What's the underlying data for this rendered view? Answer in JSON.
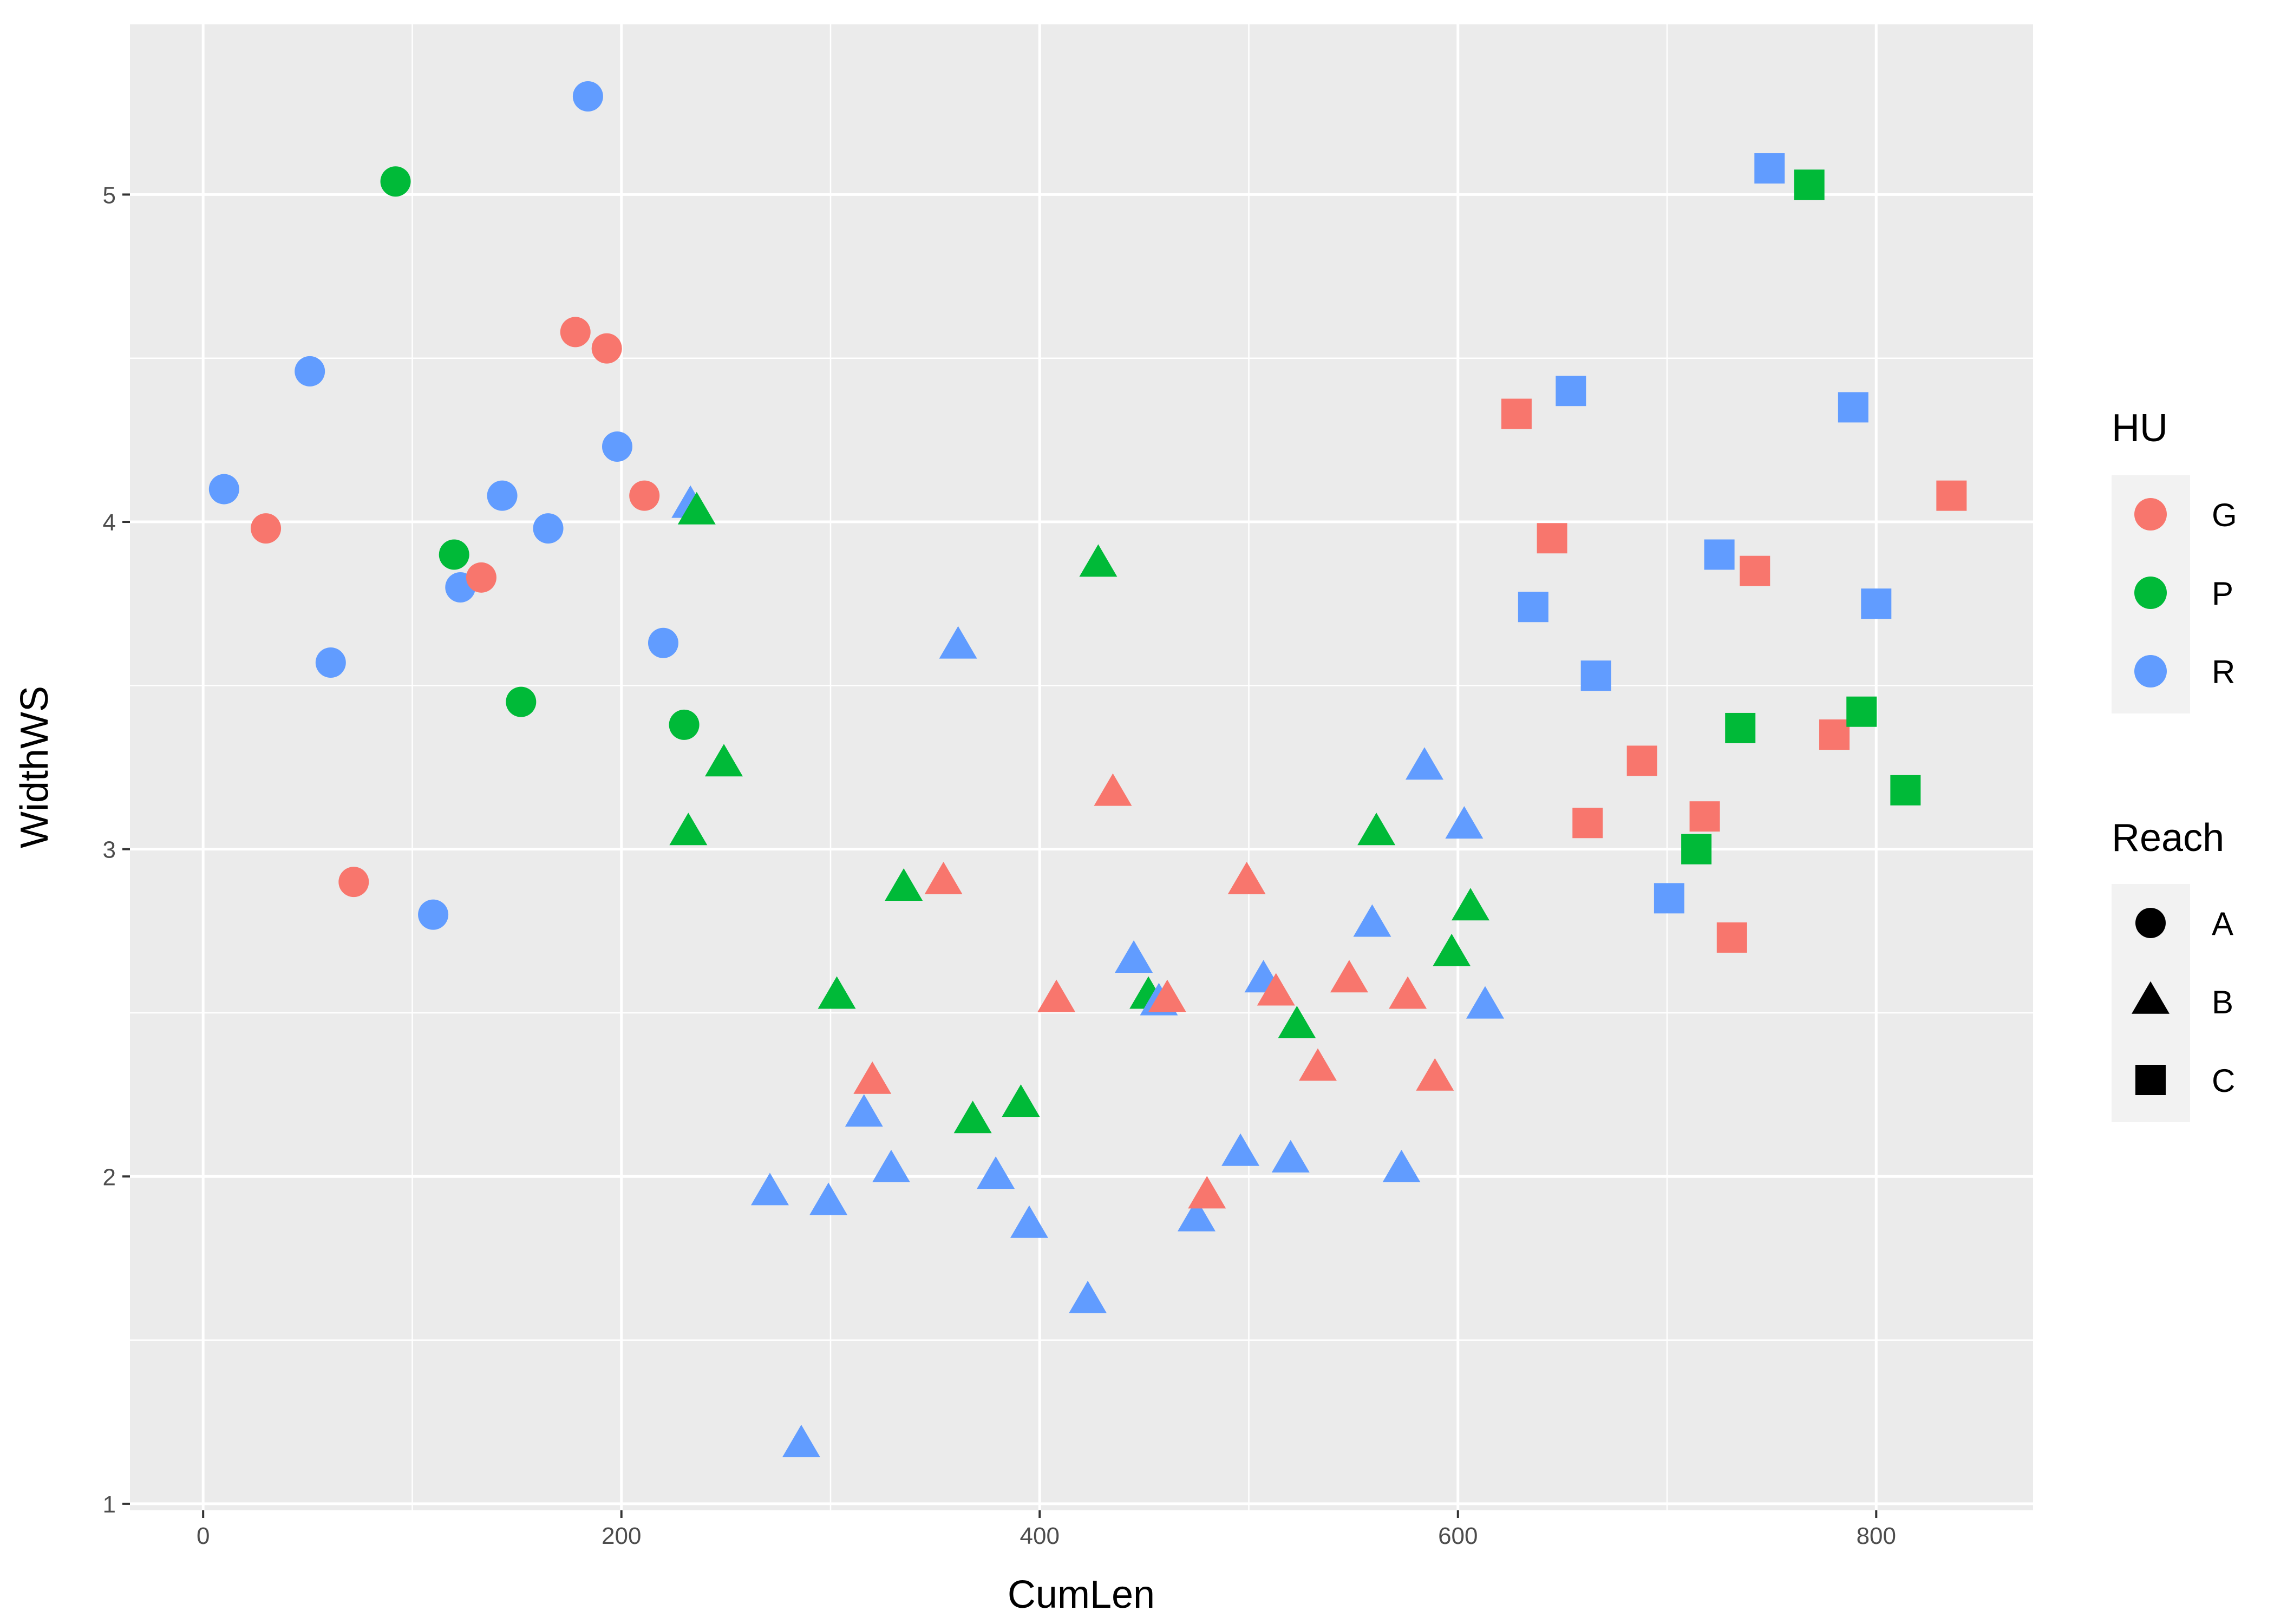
{
  "chart_data": {
    "type": "scatter",
    "title": "",
    "xlabel": "CumLen",
    "ylabel": "WidthWS",
    "xlim": [
      -35,
      875
    ],
    "ylim": [
      0.98,
      5.52
    ],
    "x_ticks": [
      0,
      200,
      400,
      600,
      800
    ],
    "y_ticks": [
      1,
      2,
      3,
      4,
      5
    ],
    "grid": true,
    "legend_position": "right",
    "color_legend": {
      "title": "HU",
      "entries": [
        {
          "label": "G",
          "color": "#F8766D"
        },
        {
          "label": "P",
          "color": "#00BA38"
        },
        {
          "label": "R",
          "color": "#619CFF"
        }
      ]
    },
    "shape_legend": {
      "title": "Reach",
      "entries": [
        {
          "label": "A",
          "shape": "circle"
        },
        {
          "label": "B",
          "shape": "triangle"
        },
        {
          "label": "C",
          "shape": "square"
        }
      ]
    },
    "points": [
      {
        "x": 10,
        "y": 4.1,
        "hu": "R",
        "reach": "A"
      },
      {
        "x": 30,
        "y": 3.98,
        "hu": "G",
        "reach": "A"
      },
      {
        "x": 51,
        "y": 4.46,
        "hu": "R",
        "reach": "A"
      },
      {
        "x": 61,
        "y": 3.57,
        "hu": "R",
        "reach": "A"
      },
      {
        "x": 72,
        "y": 2.9,
        "hu": "G",
        "reach": "A"
      },
      {
        "x": 92,
        "y": 5.04,
        "hu": "P",
        "reach": "A"
      },
      {
        "x": 110,
        "y": 2.8,
        "hu": "R",
        "reach": "A"
      },
      {
        "x": 120,
        "y": 3.9,
        "hu": "P",
        "reach": "A"
      },
      {
        "x": 123,
        "y": 3.8,
        "hu": "R",
        "reach": "A"
      },
      {
        "x": 133,
        "y": 3.83,
        "hu": "G",
        "reach": "A"
      },
      {
        "x": 143,
        "y": 4.08,
        "hu": "R",
        "reach": "A"
      },
      {
        "x": 152,
        "y": 3.45,
        "hu": "P",
        "reach": "A"
      },
      {
        "x": 165,
        "y": 3.98,
        "hu": "R",
        "reach": "A"
      },
      {
        "x": 178,
        "y": 4.58,
        "hu": "G",
        "reach": "A"
      },
      {
        "x": 184,
        "y": 5.3,
        "hu": "R",
        "reach": "A"
      },
      {
        "x": 193,
        "y": 4.53,
        "hu": "G",
        "reach": "A"
      },
      {
        "x": 198,
        "y": 4.23,
        "hu": "R",
        "reach": "A"
      },
      {
        "x": 211,
        "y": 4.08,
        "hu": "G",
        "reach": "A"
      },
      {
        "x": 220,
        "y": 3.63,
        "hu": "R",
        "reach": "A"
      },
      {
        "x": 230,
        "y": 3.38,
        "hu": "P",
        "reach": "A"
      },
      {
        "x": 233,
        "y": 4.05,
        "hu": "R",
        "reach": "B"
      },
      {
        "x": 236,
        "y": 4.03,
        "hu": "P",
        "reach": "B"
      },
      {
        "x": 232,
        "y": 3.05,
        "hu": "P",
        "reach": "B"
      },
      {
        "x": 249,
        "y": 3.26,
        "hu": "P",
        "reach": "B"
      },
      {
        "x": 271,
        "y": 1.95,
        "hu": "R",
        "reach": "B"
      },
      {
        "x": 286,
        "y": 1.18,
        "hu": "R",
        "reach": "B"
      },
      {
        "x": 299,
        "y": 1.92,
        "hu": "R",
        "reach": "B"
      },
      {
        "x": 303,
        "y": 2.55,
        "hu": "P",
        "reach": "B"
      },
      {
        "x": 316,
        "y": 2.19,
        "hu": "R",
        "reach": "B"
      },
      {
        "x": 320,
        "y": 2.29,
        "hu": "G",
        "reach": "B"
      },
      {
        "x": 329,
        "y": 2.02,
        "hu": "R",
        "reach": "B"
      },
      {
        "x": 335,
        "y": 2.88,
        "hu": "P",
        "reach": "B"
      },
      {
        "x": 354,
        "y": 2.9,
        "hu": "G",
        "reach": "B"
      },
      {
        "x": 361,
        "y": 3.62,
        "hu": "R",
        "reach": "B"
      },
      {
        "x": 368,
        "y": 2.17,
        "hu": "P",
        "reach": "B"
      },
      {
        "x": 379,
        "y": 2.0,
        "hu": "R",
        "reach": "B"
      },
      {
        "x": 391,
        "y": 2.22,
        "hu": "P",
        "reach": "B"
      },
      {
        "x": 395,
        "y": 1.85,
        "hu": "R",
        "reach": "B"
      },
      {
        "x": 408,
        "y": 2.54,
        "hu": "G",
        "reach": "B"
      },
      {
        "x": 423,
        "y": 1.62,
        "hu": "R",
        "reach": "B"
      },
      {
        "x": 428,
        "y": 3.87,
        "hu": "P",
        "reach": "B"
      },
      {
        "x": 435,
        "y": 3.17,
        "hu": "G",
        "reach": "B"
      },
      {
        "x": 445,
        "y": 2.66,
        "hu": "R",
        "reach": "B"
      },
      {
        "x": 452,
        "y": 2.55,
        "hu": "P",
        "reach": "B"
      },
      {
        "x": 457,
        "y": 2.53,
        "hu": "R",
        "reach": "B"
      },
      {
        "x": 461,
        "y": 2.54,
        "hu": "G",
        "reach": "B"
      },
      {
        "x": 475,
        "y": 1.87,
        "hu": "R",
        "reach": "B"
      },
      {
        "x": 480,
        "y": 1.94,
        "hu": "G",
        "reach": "B"
      },
      {
        "x": 496,
        "y": 2.07,
        "hu": "R",
        "reach": "B"
      },
      {
        "x": 499,
        "y": 2.9,
        "hu": "G",
        "reach": "B"
      },
      {
        "x": 507,
        "y": 2.6,
        "hu": "R",
        "reach": "B"
      },
      {
        "x": 513,
        "y": 2.56,
        "hu": "G",
        "reach": "B"
      },
      {
        "x": 520,
        "y": 2.05,
        "hu": "R",
        "reach": "B"
      },
      {
        "x": 523,
        "y": 2.46,
        "hu": "P",
        "reach": "B"
      },
      {
        "x": 533,
        "y": 2.33,
        "hu": "G",
        "reach": "B"
      },
      {
        "x": 548,
        "y": 2.6,
        "hu": "G",
        "reach": "B"
      },
      {
        "x": 559,
        "y": 2.77,
        "hu": "R",
        "reach": "B"
      },
      {
        "x": 561,
        "y": 3.05,
        "hu": "P",
        "reach": "B"
      },
      {
        "x": 573,
        "y": 2.02,
        "hu": "R",
        "reach": "B"
      },
      {
        "x": 576,
        "y": 2.55,
        "hu": "G",
        "reach": "B"
      },
      {
        "x": 584,
        "y": 3.25,
        "hu": "R",
        "reach": "B"
      },
      {
        "x": 589,
        "y": 2.3,
        "hu": "G",
        "reach": "B"
      },
      {
        "x": 597,
        "y": 2.68,
        "hu": "P",
        "reach": "B"
      },
      {
        "x": 603,
        "y": 3.07,
        "hu": "R",
        "reach": "B"
      },
      {
        "x": 606,
        "y": 2.82,
        "hu": "P",
        "reach": "B"
      },
      {
        "x": 613,
        "y": 2.52,
        "hu": "R",
        "reach": "B"
      },
      {
        "x": 628,
        "y": 4.33,
        "hu": "G",
        "reach": "C"
      },
      {
        "x": 636,
        "y": 3.74,
        "hu": "R",
        "reach": "C"
      },
      {
        "x": 645,
        "y": 3.95,
        "hu": "G",
        "reach": "C"
      },
      {
        "x": 654,
        "y": 4.4,
        "hu": "R",
        "reach": "C"
      },
      {
        "x": 662,
        "y": 3.08,
        "hu": "G",
        "reach": "C"
      },
      {
        "x": 666,
        "y": 3.53,
        "hu": "R",
        "reach": "C"
      },
      {
        "x": 688,
        "y": 3.27,
        "hu": "G",
        "reach": "C"
      },
      {
        "x": 701,
        "y": 2.85,
        "hu": "R",
        "reach": "C"
      },
      {
        "x": 714,
        "y": 3.0,
        "hu": "P",
        "reach": "C"
      },
      {
        "x": 718,
        "y": 3.1,
        "hu": "G",
        "reach": "C"
      },
      {
        "x": 725,
        "y": 3.9,
        "hu": "R",
        "reach": "C"
      },
      {
        "x": 731,
        "y": 2.73,
        "hu": "G",
        "reach": "C"
      },
      {
        "x": 735,
        "y": 3.37,
        "hu": "P",
        "reach": "C"
      },
      {
        "x": 742,
        "y": 3.85,
        "hu": "G",
        "reach": "C"
      },
      {
        "x": 749,
        "y": 5.08,
        "hu": "R",
        "reach": "C"
      },
      {
        "x": 768,
        "y": 5.03,
        "hu": "P",
        "reach": "C"
      },
      {
        "x": 780,
        "y": 3.35,
        "hu": "G",
        "reach": "C"
      },
      {
        "x": 789,
        "y": 4.35,
        "hu": "R",
        "reach": "C"
      },
      {
        "x": 793,
        "y": 3.42,
        "hu": "P",
        "reach": "C"
      },
      {
        "x": 800,
        "y": 3.75,
        "hu": "R",
        "reach": "C"
      },
      {
        "x": 814,
        "y": 3.18,
        "hu": "P",
        "reach": "C"
      },
      {
        "x": 836,
        "y": 4.08,
        "hu": "G",
        "reach": "C"
      }
    ]
  }
}
